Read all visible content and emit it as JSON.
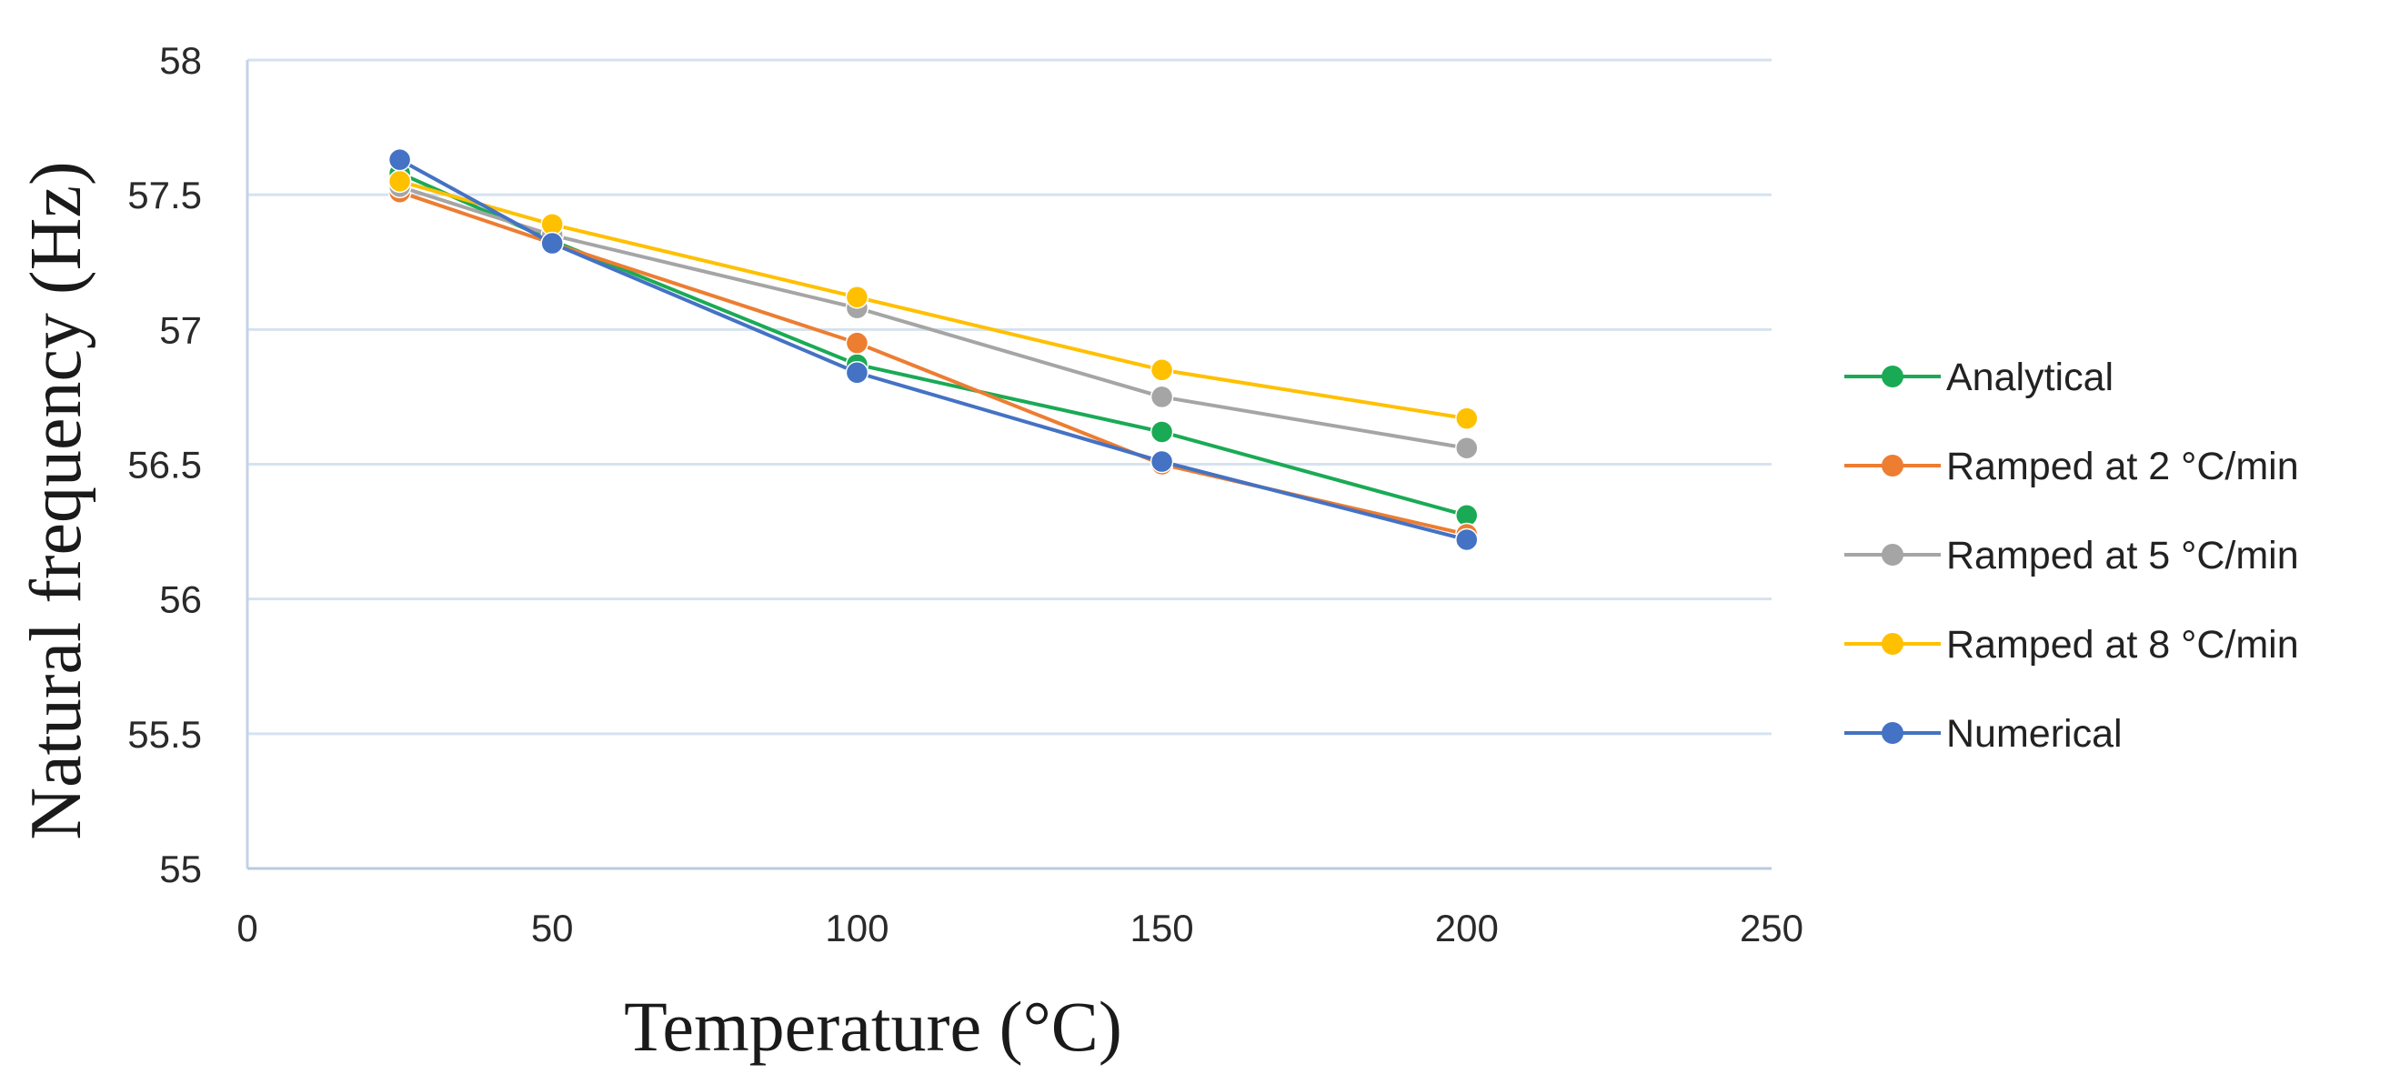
{
  "chart_data": {
    "type": "line",
    "title": "",
    "xlabel": "Temperature  (°C)",
    "ylabel": "Natural frequency (Hz)",
    "xlim": [
      0,
      250
    ],
    "ylim": [
      55,
      58
    ],
    "xticks": [
      0,
      50,
      100,
      150,
      200,
      250
    ],
    "yticks": [
      55,
      55.5,
      56,
      56.5,
      57,
      57.5,
      58
    ],
    "grid": "horizontal",
    "legend_position": "right",
    "x": [
      25,
      50,
      100,
      150,
      200
    ],
    "series": [
      {
        "name": "Analytical",
        "color": "#1aaa55",
        "values": [
          57.58,
          57.33,
          56.87,
          56.62,
          56.31
        ]
      },
      {
        "name": "Ramped at 2 °C/min",
        "color": "#ed7d31",
        "values": [
          57.51,
          57.32,
          56.95,
          56.5,
          56.24
        ]
      },
      {
        "name": "Ramped at 5 °C/min",
        "color": "#a5a5a5",
        "values": [
          57.53,
          57.35,
          57.08,
          56.75,
          56.56
        ]
      },
      {
        "name": "Ramped at 8 °C/min",
        "color": "#ffc000",
        "values": [
          57.55,
          57.39,
          57.12,
          56.85,
          56.67
        ]
      },
      {
        "name": "Numerical",
        "color": "#4472c4",
        "values": [
          57.63,
          57.32,
          56.84,
          56.51,
          56.22
        ]
      }
    ]
  }
}
